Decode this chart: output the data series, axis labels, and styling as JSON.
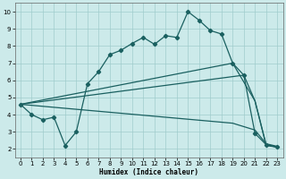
{
  "xlabel": "Humidex (Indice chaleur)",
  "bg_color": "#cceaea",
  "grid_color": "#a0cccc",
  "line_color": "#1a6060",
  "xlim": [
    -0.5,
    23.5
  ],
  "ylim": [
    1.5,
    10.5
  ],
  "xticks": [
    0,
    1,
    2,
    3,
    4,
    5,
    6,
    7,
    8,
    9,
    10,
    11,
    12,
    13,
    14,
    15,
    16,
    17,
    18,
    19,
    20,
    21,
    22,
    23
  ],
  "yticks": [
    2,
    3,
    4,
    5,
    6,
    7,
    8,
    9,
    10
  ],
  "curve_main_x": [
    0,
    1,
    2,
    3,
    4,
    5,
    6,
    7,
    8,
    9,
    10,
    11,
    12,
    13,
    14,
    15,
    16,
    17,
    18,
    19,
    20,
    21,
    22,
    23
  ],
  "curve_main_y": [
    4.6,
    4.0,
    3.7,
    3.85,
    2.2,
    3.0,
    5.8,
    6.5,
    7.5,
    7.75,
    8.15,
    8.5,
    8.1,
    8.6,
    8.5,
    10.0,
    9.5,
    8.9,
    8.7,
    7.0,
    6.3,
    2.9,
    2.25,
    2.1
  ],
  "curve_upper_x": [
    0,
    19,
    21,
    22,
    23
  ],
  "curve_upper_y": [
    4.6,
    7.0,
    4.8,
    2.2,
    2.1
  ],
  "curve_mid_x": [
    0,
    20,
    21,
    22,
    23
  ],
  "curve_mid_y": [
    4.6,
    6.3,
    4.8,
    2.25,
    2.1
  ],
  "curve_lower_x": [
    0,
    19,
    20,
    21,
    22,
    23
  ],
  "curve_lower_y": [
    4.6,
    3.5,
    3.3,
    3.1,
    2.3,
    2.15
  ]
}
